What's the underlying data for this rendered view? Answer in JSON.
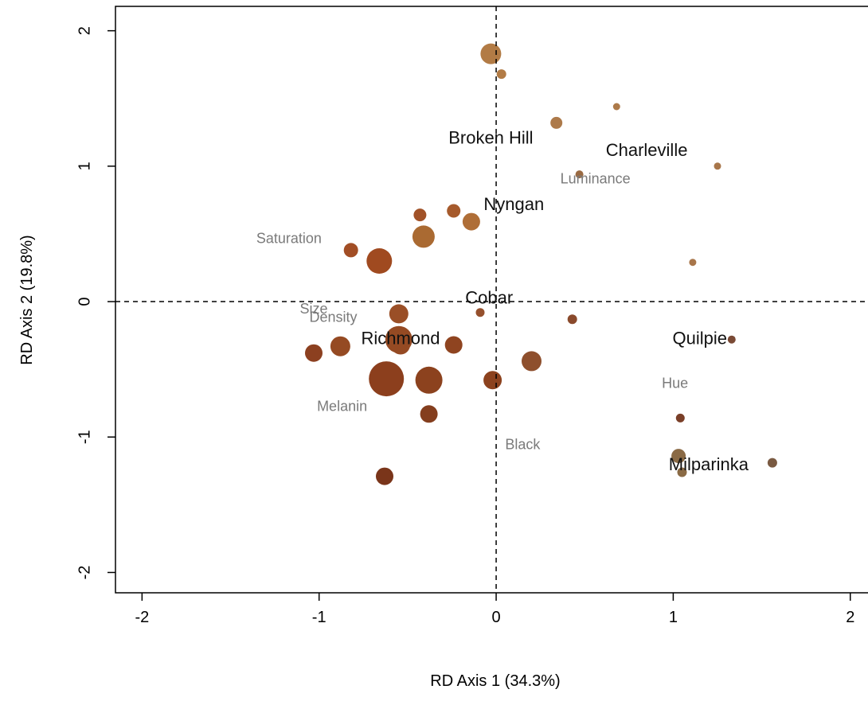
{
  "chart_data": {
    "type": "scatter",
    "title": "",
    "xlabel": "RD Axis 1 (34.3%)",
    "ylabel": "RD Axis 2 (19.8%)",
    "xlim": [
      -2.15,
      2.1
    ],
    "ylim": [
      -2.15,
      2.18
    ],
    "xticks": [
      -2,
      -1,
      0,
      1,
      2
    ],
    "yticks": [
      -2,
      -1,
      0,
      1,
      2
    ],
    "reference_lines": {
      "x": 0,
      "y": 0,
      "style": "dashed"
    },
    "grid": false,
    "legend": "none",
    "points": [
      {
        "x": -0.03,
        "y": 1.83,
        "size": 13,
        "color": "#b27b45"
      },
      {
        "x": 0.03,
        "y": 1.68,
        "size": 6,
        "color": "#b27b45"
      },
      {
        "x": 0.34,
        "y": 1.32,
        "size": 7.5,
        "color": "#ad7a4a"
      },
      {
        "x": 0.68,
        "y": 1.44,
        "size": 4.5,
        "color": "#ad7a4a"
      },
      {
        "x": 0.47,
        "y": 0.94,
        "size": 5,
        "color": "#9a6a42"
      },
      {
        "x": 1.25,
        "y": 1.0,
        "size": 4.5,
        "color": "#a8764a"
      },
      {
        "x": 1.11,
        "y": 0.29,
        "size": 4.5,
        "color": "#a8764a"
      },
      {
        "x": -0.43,
        "y": 0.64,
        "size": 8,
        "color": "#a15228"
      },
      {
        "x": -0.24,
        "y": 0.67,
        "size": 8.5,
        "color": "#a65a2c"
      },
      {
        "x": -0.14,
        "y": 0.59,
        "size": 11,
        "color": "#af6e37"
      },
      {
        "x": -0.41,
        "y": 0.48,
        "size": 14,
        "color": "#aa6a32"
      },
      {
        "x": -0.82,
        "y": 0.38,
        "size": 9,
        "color": "#a24e25"
      },
      {
        "x": -0.66,
        "y": 0.3,
        "size": 16,
        "color": "#a04a20"
      },
      {
        "x": -0.55,
        "y": -0.09,
        "size": 12,
        "color": "#9a4f27"
      },
      {
        "x": -0.09,
        "y": -0.08,
        "size": 5.5,
        "color": "#95502d"
      },
      {
        "x": 0.43,
        "y": -0.13,
        "size": 6,
        "color": "#8a4a2c"
      },
      {
        "x": -0.55,
        "y": -0.28,
        "size": 17,
        "color": "#954a23"
      },
      {
        "x": -0.54,
        "y": -0.32,
        "size": 12,
        "color": "#954a23"
      },
      {
        "x": -0.24,
        "y": -0.32,
        "size": 11,
        "color": "#8f4420"
      },
      {
        "x": -0.88,
        "y": -0.33,
        "size": 12.5,
        "color": "#954a23"
      },
      {
        "x": -1.03,
        "y": -0.38,
        "size": 11,
        "color": "#8c4020"
      },
      {
        "x": 0.2,
        "y": -0.44,
        "size": 12.5,
        "color": "#8e4f2d"
      },
      {
        "x": -0.62,
        "y": -0.57,
        "size": 22,
        "color": "#8c3f1d"
      },
      {
        "x": -0.38,
        "y": -0.58,
        "size": 17,
        "color": "#8c421e"
      },
      {
        "x": -0.02,
        "y": -0.58,
        "size": 11.5,
        "color": "#8c421e"
      },
      {
        "x": -0.38,
        "y": -0.83,
        "size": 11,
        "color": "#843e1e"
      },
      {
        "x": 1.33,
        "y": -0.28,
        "size": 5,
        "color": "#7a4a35"
      },
      {
        "x": 1.04,
        "y": -0.86,
        "size": 5.5,
        "color": "#7a3f28"
      },
      {
        "x": 1.03,
        "y": -1.14,
        "size": 9,
        "color": "#8a6a45"
      },
      {
        "x": 1.05,
        "y": -1.26,
        "size": 6,
        "color": "#8a6a45"
      },
      {
        "x": 1.56,
        "y": -1.19,
        "size": 6,
        "color": "#7a5a42"
      },
      {
        "x": -0.63,
        "y": -1.29,
        "size": 11,
        "color": "#7a351a"
      }
    ],
    "site_labels": [
      {
        "text": "Broken Hill",
        "x": -0.03,
        "y": 1.2
      },
      {
        "text": "Charleville",
        "x": 0.85,
        "y": 1.11
      },
      {
        "text": "Nyngan",
        "x": 0.1,
        "y": 0.71
      },
      {
        "text": "Cobar",
        "x": -0.04,
        "y": 0.02
      },
      {
        "text": "Richmond",
        "x": -0.54,
        "y": -0.28
      },
      {
        "text": "Quilpie",
        "x": 1.15,
        "y": -0.28
      },
      {
        "text": "Milparinka",
        "x": 1.2,
        "y": -1.21
      }
    ],
    "variable_labels": [
      {
        "text": "Luminance",
        "x": 0.56,
        "y": 0.9
      },
      {
        "text": "Saturation",
        "x": -1.17,
        "y": 0.46
      },
      {
        "text": "Size",
        "x": -1.03,
        "y": -0.06
      },
      {
        "text": "Density",
        "x": -0.92,
        "y": -0.12
      },
      {
        "text": "Hue",
        "x": 1.01,
        "y": -0.61
      },
      {
        "text": "Melanin",
        "x": -0.87,
        "y": -0.78
      },
      {
        "text": "Black",
        "x": 0.15,
        "y": -1.06
      }
    ]
  }
}
